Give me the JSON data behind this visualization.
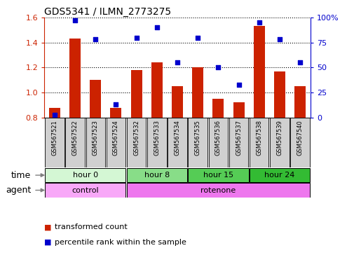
{
  "title": "GDS5341 / ILMN_2773275",
  "samples": [
    "GSM567521",
    "GSM567522",
    "GSM567523",
    "GSM567524",
    "GSM567532",
    "GSM567533",
    "GSM567534",
    "GSM567535",
    "GSM567536",
    "GSM567537",
    "GSM567538",
    "GSM567539",
    "GSM567540"
  ],
  "bar_values": [
    0.88,
    1.43,
    1.1,
    0.88,
    1.18,
    1.24,
    1.05,
    1.2,
    0.95,
    0.92,
    1.53,
    1.17,
    1.05
  ],
  "dot_values": [
    3,
    97,
    78,
    13,
    80,
    90,
    55,
    80,
    50,
    33,
    95,
    78,
    55
  ],
  "ylim_left": [
    0.8,
    1.6
  ],
  "ylim_right": [
    0,
    100
  ],
  "yticks_left": [
    0.8,
    1.0,
    1.2,
    1.4,
    1.6
  ],
  "yticks_right": [
    0,
    25,
    50,
    75,
    100
  ],
  "bar_color": "#cc2200",
  "dot_color": "#0000cc",
  "bar_baseline": 0.8,
  "time_labels": [
    {
      "label": "hour 0",
      "start": 0,
      "end": 4,
      "color": "#d4f7d4"
    },
    {
      "label": "hour 8",
      "start": 4,
      "end": 7,
      "color": "#88dd88"
    },
    {
      "label": "hour 15",
      "start": 7,
      "end": 10,
      "color": "#55cc55"
    },
    {
      "label": "hour 24",
      "start": 10,
      "end": 13,
      "color": "#33bb33"
    }
  ],
  "agent_labels": [
    {
      "label": "control",
      "start": 0,
      "end": 4,
      "color": "#f8a8f8"
    },
    {
      "label": "rotenone",
      "start": 4,
      "end": 13,
      "color": "#ee77ee"
    }
  ],
  "legend_bar_label": "transformed count",
  "legend_dot_label": "percentile rank within the sample",
  "time_row_label": "time",
  "agent_row_label": "agent",
  "grid_color": "black",
  "ylabel_left_color": "#cc2200",
  "ylabel_right_color": "#0000cc",
  "sample_bg": "#d0d0d0",
  "main_bg": "white",
  "plot_bg": "white"
}
